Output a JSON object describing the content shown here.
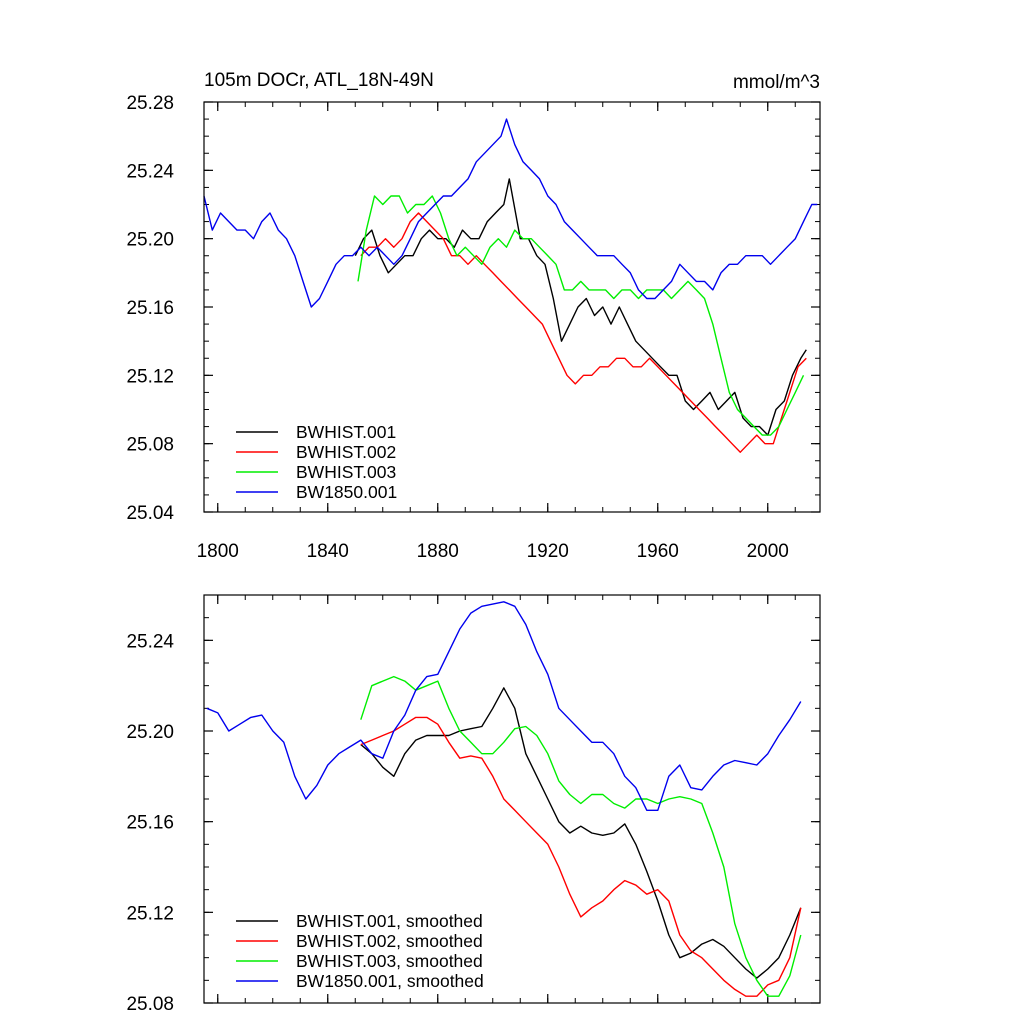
{
  "chart_data": [
    {
      "type": "line",
      "title": "105m DOCr, ATL_18N-49N",
      "units": "mmol/m^3",
      "xlim": [
        1795,
        2019
      ],
      "ylim": [
        25.04,
        25.28
      ],
      "xticks": [
        1800,
        1840,
        1880,
        1920,
        1960,
        2000
      ],
      "yticks": [
        25.04,
        25.08,
        25.12,
        25.16,
        25.2,
        25.24,
        25.28
      ],
      "ytick_labels": [
        "25.04",
        "25.08",
        "25.12",
        "25.16",
        "25.20",
        "25.24",
        "25.28"
      ],
      "legend_position": "bottom-left",
      "series": [
        {
          "name": "BWHIST.001",
          "color": "#000000",
          "x": [
            1850,
            1853,
            1856,
            1859,
            1862,
            1865,
            1868,
            1871,
            1874,
            1877,
            1880,
            1883,
            1886,
            1889,
            1892,
            1895,
            1898,
            1901,
            1904,
            1906,
            1910,
            1913,
            1916,
            1919,
            1922,
            1925,
            1928,
            1931,
            1934,
            1937,
            1940,
            1943,
            1946,
            1949,
            1952,
            1955,
            1958,
            1961,
            1964,
            1967,
            1970,
            1973,
            1976,
            1979,
            1982,
            1985,
            1988,
            1991,
            1994,
            1997,
            2000,
            2003,
            2006,
            2009,
            2012,
            2014
          ],
          "y": [
            25.19,
            25.2,
            25.205,
            25.19,
            25.18,
            25.185,
            25.19,
            25.19,
            25.2,
            25.205,
            25.2,
            25.2,
            25.195,
            25.205,
            25.2,
            25.2,
            25.21,
            25.215,
            25.22,
            25.235,
            25.2,
            25.2,
            25.19,
            25.185,
            25.165,
            25.14,
            25.15,
            25.16,
            25.165,
            25.155,
            25.16,
            25.15,
            25.16,
            25.15,
            25.14,
            25.135,
            25.13,
            25.125,
            25.12,
            25.12,
            25.105,
            25.1,
            25.105,
            25.11,
            25.1,
            25.105,
            25.11,
            25.095,
            25.09,
            25.09,
            25.085,
            25.1,
            25.105,
            25.12,
            25.13,
            25.135
          ]
        },
        {
          "name": "BWHIST.002",
          "color": "#ff0000",
          "x": [
            1852,
            1855,
            1858,
            1861,
            1864,
            1867,
            1870,
            1873,
            1876,
            1879,
            1882,
            1885,
            1888,
            1891,
            1894,
            1897,
            1900,
            1903,
            1906,
            1909,
            1912,
            1915,
            1918,
            1921,
            1924,
            1927,
            1930,
            1933,
            1936,
            1939,
            1942,
            1945,
            1948,
            1951,
            1954,
            1957,
            1960,
            1963,
            1966,
            1969,
            1972,
            1975,
            1978,
            1981,
            1984,
            1987,
            1990,
            1993,
            1996,
            1999,
            2002,
            2005,
            2008,
            2011,
            2014
          ],
          "y": [
            25.19,
            25.195,
            25.195,
            25.2,
            25.195,
            25.2,
            25.21,
            25.215,
            25.21,
            25.205,
            25.2,
            25.19,
            25.19,
            25.185,
            25.19,
            25.185,
            25.18,
            25.175,
            25.17,
            25.165,
            25.16,
            25.155,
            25.15,
            25.14,
            25.13,
            25.12,
            25.115,
            25.12,
            25.12,
            25.125,
            25.125,
            25.13,
            25.13,
            25.125,
            25.125,
            25.13,
            25.125,
            25.12,
            25.115,
            25.11,
            25.105,
            25.1,
            25.095,
            25.09,
            25.085,
            25.08,
            25.075,
            25.08,
            25.085,
            25.08,
            25.08,
            25.095,
            25.11,
            25.125,
            25.13
          ]
        },
        {
          "name": "BWHIST.003",
          "color": "#00ee00",
          "x": [
            1851,
            1854,
            1857,
            1860,
            1863,
            1866,
            1869,
            1872,
            1875,
            1878,
            1881,
            1884,
            1887,
            1890,
            1893,
            1896,
            1899,
            1902,
            1905,
            1908,
            1911,
            1914,
            1917,
            1920,
            1923,
            1926,
            1929,
            1932,
            1935,
            1938,
            1941,
            1944,
            1947,
            1950,
            1953,
            1956,
            1959,
            1962,
            1965,
            1968,
            1971,
            1974,
            1977,
            1980,
            1983,
            1986,
            1989,
            1992,
            1995,
            1998,
            2001,
            2004,
            2007,
            2010,
            2013
          ],
          "y": [
            25.175,
            25.205,
            25.225,
            25.22,
            25.225,
            25.225,
            25.215,
            25.22,
            25.22,
            25.225,
            25.215,
            25.2,
            25.19,
            25.195,
            25.19,
            25.185,
            25.195,
            25.2,
            25.195,
            25.205,
            25.2,
            25.2,
            25.195,
            25.19,
            25.185,
            25.17,
            25.17,
            25.175,
            25.17,
            25.17,
            25.17,
            25.165,
            25.17,
            25.17,
            25.165,
            25.17,
            25.17,
            25.17,
            25.165,
            25.17,
            25.175,
            25.17,
            25.165,
            25.15,
            25.13,
            25.11,
            25.1,
            25.095,
            25.09,
            25.085,
            25.085,
            25.09,
            25.1,
            25.11,
            25.12
          ]
        },
        {
          "name": "BW1850.001",
          "color": "#0000ee",
          "x": [
            1795,
            1798,
            1801,
            1804,
            1807,
            1810,
            1813,
            1816,
            1819,
            1822,
            1825,
            1828,
            1831,
            1834,
            1837,
            1840,
            1843,
            1846,
            1849,
            1852,
            1855,
            1858,
            1861,
            1864,
            1867,
            1870,
            1873,
            1876,
            1879,
            1882,
            1885,
            1888,
            1891,
            1894,
            1897,
            1900,
            1903,
            1905,
            1908,
            1911,
            1914,
            1917,
            1920,
            1923,
            1926,
            1929,
            1932,
            1935,
            1938,
            1941,
            1944,
            1947,
            1950,
            1953,
            1956,
            1959,
            1962,
            1965,
            1968,
            1971,
            1974,
            1977,
            1980,
            1983,
            1986,
            1989,
            1992,
            1995,
            1998,
            2001,
            2004,
            2007,
            2010,
            2013,
            2016,
            2018
          ],
          "y": [
            25.225,
            25.205,
            25.215,
            25.21,
            25.205,
            25.205,
            25.2,
            25.21,
            25.215,
            25.205,
            25.2,
            25.19,
            25.175,
            25.16,
            25.165,
            25.175,
            25.185,
            25.19,
            25.19,
            25.195,
            25.19,
            25.195,
            25.19,
            25.185,
            25.19,
            25.2,
            25.21,
            25.215,
            25.22,
            25.225,
            25.225,
            25.23,
            25.235,
            25.245,
            25.25,
            25.255,
            25.26,
            25.27,
            25.255,
            25.245,
            25.24,
            25.235,
            25.225,
            25.22,
            25.21,
            25.205,
            25.2,
            25.195,
            25.19,
            25.19,
            25.19,
            25.185,
            25.18,
            25.17,
            25.165,
            25.165,
            25.17,
            25.175,
            25.185,
            25.18,
            25.175,
            25.175,
            25.17,
            25.18,
            25.185,
            25.185,
            25.19,
            25.19,
            25.19,
            25.185,
            25.19,
            25.195,
            25.2,
            25.21,
            25.22,
            25.22
          ]
        }
      ]
    },
    {
      "type": "line",
      "title": "",
      "xlim": [
        1795,
        2019
      ],
      "ylim": [
        25.08,
        25.26
      ],
      "xticks": [
        1800,
        1840,
        1880,
        1920,
        1960,
        2000
      ],
      "yticks": [
        25.08,
        25.12,
        25.16,
        25.2,
        25.24
      ],
      "ytick_labels": [
        "25.08",
        "25.12",
        "25.16",
        "25.20",
        "25.24"
      ],
      "legend_position": "bottom-left",
      "series": [
        {
          "name": "BWHIST.001, smoothed",
          "color": "#000000",
          "x": [
            1852,
            1856,
            1860,
            1864,
            1868,
            1872,
            1876,
            1880,
            1884,
            1888,
            1892,
            1896,
            1900,
            1904,
            1908,
            1912,
            1916,
            1920,
            1924,
            1928,
            1932,
            1936,
            1940,
            1944,
            1948,
            1952,
            1956,
            1960,
            1964,
            1968,
            1972,
            1976,
            1980,
            1984,
            1988,
            1992,
            1996,
            2000,
            2004,
            2008,
            2012
          ],
          "y": [
            25.194,
            25.19,
            25.184,
            25.18,
            25.19,
            25.196,
            25.198,
            25.198,
            25.198,
            25.2,
            25.201,
            25.202,
            25.21,
            25.219,
            25.21,
            25.19,
            25.18,
            25.17,
            25.16,
            25.155,
            25.158,
            25.155,
            25.154,
            25.155,
            25.159,
            25.15,
            25.138,
            25.125,
            25.11,
            25.1,
            25.102,
            25.106,
            25.108,
            25.105,
            25.1,
            25.095,
            25.091,
            25.095,
            25.1,
            25.11,
            25.122
          ]
        },
        {
          "name": "BWHIST.002, smoothed",
          "color": "#ff0000",
          "x": [
            1852,
            1856,
            1860,
            1864,
            1868,
            1872,
            1876,
            1880,
            1884,
            1888,
            1892,
            1896,
            1900,
            1904,
            1908,
            1912,
            1916,
            1920,
            1924,
            1928,
            1932,
            1936,
            1940,
            1944,
            1948,
            1952,
            1956,
            1960,
            1964,
            1968,
            1972,
            1976,
            1980,
            1984,
            1988,
            1992,
            1996,
            2000,
            2004,
            2008,
            2012
          ],
          "y": [
            25.194,
            25.196,
            25.198,
            25.2,
            25.203,
            25.206,
            25.206,
            25.203,
            25.195,
            25.188,
            25.189,
            25.188,
            25.18,
            25.17,
            25.165,
            25.16,
            25.155,
            25.15,
            25.14,
            25.128,
            25.118,
            25.122,
            25.125,
            25.13,
            25.134,
            25.132,
            25.128,
            25.13,
            25.125,
            25.11,
            25.103,
            25.1,
            25.095,
            25.09,
            25.086,
            25.083,
            25.083,
            25.088,
            25.09,
            25.1,
            25.122
          ]
        },
        {
          "name": "BWHIST.003, smoothed",
          "color": "#00ee00",
          "x": [
            1852,
            1856,
            1860,
            1864,
            1868,
            1872,
            1876,
            1880,
            1884,
            1888,
            1892,
            1896,
            1900,
            1904,
            1908,
            1912,
            1916,
            1920,
            1924,
            1928,
            1932,
            1936,
            1940,
            1944,
            1948,
            1952,
            1956,
            1960,
            1964,
            1968,
            1972,
            1976,
            1980,
            1984,
            1988,
            1992,
            1996,
            2000,
            2004,
            2008,
            2012
          ],
          "y": [
            25.205,
            25.22,
            25.222,
            25.224,
            25.222,
            25.218,
            25.22,
            25.222,
            25.21,
            25.2,
            25.195,
            25.19,
            25.19,
            25.195,
            25.201,
            25.202,
            25.198,
            25.19,
            25.178,
            25.172,
            25.168,
            25.172,
            25.172,
            25.168,
            25.166,
            25.17,
            25.17,
            25.168,
            25.17,
            25.171,
            25.17,
            25.168,
            25.155,
            25.14,
            25.115,
            25.1,
            25.09,
            25.083,
            25.083,
            25.092,
            25.11
          ]
        },
        {
          "name": "BW1850.001, smoothed",
          "color": "#0000ee",
          "x": [
            1796,
            1800,
            1804,
            1808,
            1812,
            1816,
            1820,
            1824,
            1828,
            1832,
            1836,
            1840,
            1844,
            1848,
            1852,
            1856,
            1860,
            1864,
            1868,
            1872,
            1876,
            1880,
            1884,
            1888,
            1892,
            1896,
            1900,
            1904,
            1908,
            1912,
            1916,
            1920,
            1924,
            1928,
            1932,
            1936,
            1940,
            1944,
            1948,
            1952,
            1956,
            1960,
            1964,
            1968,
            1972,
            1976,
            1980,
            1984,
            1988,
            1992,
            1996,
            2000,
            2004,
            2008,
            2012
          ],
          "y": [
            25.21,
            25.208,
            25.2,
            25.203,
            25.206,
            25.207,
            25.2,
            25.195,
            25.18,
            25.17,
            25.176,
            25.185,
            25.19,
            25.193,
            25.196,
            25.19,
            25.188,
            25.2,
            25.207,
            25.218,
            25.224,
            25.225,
            25.235,
            25.245,
            25.252,
            25.255,
            25.256,
            25.257,
            25.255,
            25.247,
            25.235,
            25.225,
            25.21,
            25.205,
            25.2,
            25.195,
            25.195,
            25.19,
            25.18,
            25.175,
            25.165,
            25.165,
            25.18,
            25.185,
            25.175,
            25.174,
            25.18,
            25.185,
            25.187,
            25.186,
            25.185,
            25.19,
            25.198,
            25.205,
            25.213
          ]
        }
      ]
    }
  ]
}
